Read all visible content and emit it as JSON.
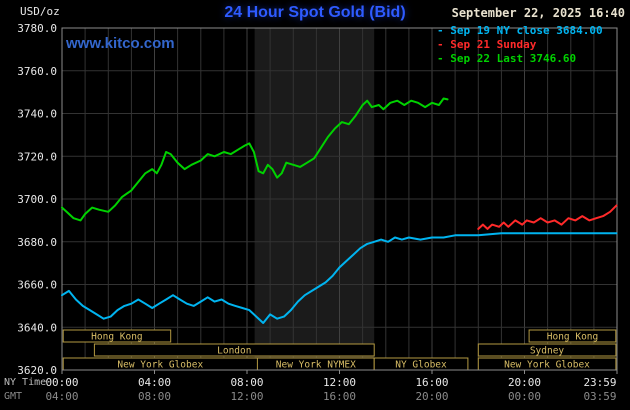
{
  "header": {
    "unit_label": "USD/oz",
    "title": "24 Hour Spot Gold (Bid)",
    "datetime": "September 22, 2025 16:40"
  },
  "watermark": {
    "text": "www.kitco.com",
    "color": "#3366cc"
  },
  "legend": {
    "items": [
      {
        "label": "- Sep 19 NY close 3684.00",
        "color": "#00b4f0"
      },
      {
        "label": "- Sep 21 Sunday",
        "color": "#ff2a2a"
      },
      {
        "label": "- Sep 22 Last 3746.60",
        "color": "#00d200"
      }
    ]
  },
  "axes": {
    "ny_time_label": "NY Time",
    "gmt_label": "GMT"
  },
  "colors": {
    "background": "#000000",
    "grid": "#333333",
    "grid_major": "#404040",
    "border": "#8c8c8c",
    "band": "#1b1b1b",
    "session_border": "#b49a42",
    "session_text": "#d8bd66",
    "tick_text": "#e8e8e8",
    "gmt_text": "#8a8a8a",
    "title": "#2e5bff"
  },
  "chart_data": {
    "type": "line",
    "title": "24 Hour Spot Gold (Bid)",
    "xlabel": "NY Time",
    "ylabel": "USD/oz",
    "ylim": [
      3620,
      3780
    ],
    "yticks": [
      3620,
      3640,
      3660,
      3680,
      3700,
      3720,
      3740,
      3760,
      3780
    ],
    "xticks": [
      {
        "h": 0,
        "ny": "00:00",
        "gmt": "04:00"
      },
      {
        "h": 4,
        "ny": "04:00",
        "gmt": "08:00"
      },
      {
        "h": 8,
        "ny": "08:00",
        "gmt": "12:00"
      },
      {
        "h": 12,
        "ny": "12:00",
        "gmt": "16:00"
      },
      {
        "h": 16,
        "ny": "16:00",
        "gmt": "20:00"
      },
      {
        "h": 20,
        "ny": "20:00",
        "gmt": "00:00"
      },
      {
        "h": 24,
        "ny": "23:59",
        "gmt": "03:59"
      }
    ],
    "highlight_band": {
      "from": 8.33,
      "to": 13.5
    },
    "series": [
      {
        "name": "Sep 19 NY close",
        "color": "#00b4f0",
        "last_value": 3684.0,
        "points": [
          [
            0,
            3655
          ],
          [
            0.3,
            3657
          ],
          [
            0.6,
            3653
          ],
          [
            0.9,
            3650
          ],
          [
            1.2,
            3648
          ],
          [
            1.5,
            3646
          ],
          [
            1.8,
            3644
          ],
          [
            2.1,
            3645
          ],
          [
            2.4,
            3648
          ],
          [
            2.7,
            3650
          ],
          [
            3,
            3651
          ],
          [
            3.3,
            3653
          ],
          [
            3.6,
            3651
          ],
          [
            3.9,
            3649
          ],
          [
            4.2,
            3651
          ],
          [
            4.5,
            3653
          ],
          [
            4.8,
            3655
          ],
          [
            5.1,
            3653
          ],
          [
            5.4,
            3651
          ],
          [
            5.7,
            3650
          ],
          [
            6,
            3652
          ],
          [
            6.3,
            3654
          ],
          [
            6.6,
            3652
          ],
          [
            6.9,
            3653
          ],
          [
            7.2,
            3651
          ],
          [
            7.5,
            3650
          ],
          [
            7.8,
            3649
          ],
          [
            8.1,
            3648
          ],
          [
            8.4,
            3645
          ],
          [
            8.7,
            3642
          ],
          [
            9,
            3646
          ],
          [
            9.3,
            3644
          ],
          [
            9.6,
            3645
          ],
          [
            9.9,
            3648
          ],
          [
            10.2,
            3652
          ],
          [
            10.5,
            3655
          ],
          [
            10.8,
            3657
          ],
          [
            11.1,
            3659
          ],
          [
            11.4,
            3661
          ],
          [
            11.7,
            3664
          ],
          [
            12,
            3668
          ],
          [
            12.3,
            3671
          ],
          [
            12.6,
            3674
          ],
          [
            12.9,
            3677
          ],
          [
            13.2,
            3679
          ],
          [
            13.5,
            3680
          ],
          [
            13.8,
            3681
          ],
          [
            14.1,
            3680
          ],
          [
            14.4,
            3682
          ],
          [
            14.7,
            3681
          ],
          [
            15,
            3682
          ],
          [
            15.5,
            3681
          ],
          [
            16,
            3682
          ],
          [
            16.5,
            3682
          ],
          [
            17,
            3683
          ],
          [
            18,
            3683
          ],
          [
            19,
            3684
          ],
          [
            20,
            3684
          ],
          [
            21,
            3684
          ],
          [
            22,
            3684
          ],
          [
            23,
            3684
          ],
          [
            23.98,
            3684
          ]
        ]
      },
      {
        "name": "Sep 21 Sunday",
        "color": "#ff2a2a",
        "last_value": 3697,
        "points": [
          [
            18,
            3686
          ],
          [
            18.2,
            3688
          ],
          [
            18.4,
            3686
          ],
          [
            18.6,
            3688
          ],
          [
            18.9,
            3687
          ],
          [
            19.1,
            3689
          ],
          [
            19.3,
            3687
          ],
          [
            19.6,
            3690
          ],
          [
            19.9,
            3688
          ],
          [
            20.1,
            3690
          ],
          [
            20.4,
            3689
          ],
          [
            20.7,
            3691
          ],
          [
            21,
            3689
          ],
          [
            21.3,
            3690
          ],
          [
            21.6,
            3688
          ],
          [
            21.9,
            3691
          ],
          [
            22.2,
            3690
          ],
          [
            22.5,
            3692
          ],
          [
            22.8,
            3690
          ],
          [
            23.1,
            3691
          ],
          [
            23.4,
            3692
          ],
          [
            23.7,
            3694
          ],
          [
            23.98,
            3697
          ]
        ]
      },
      {
        "name": "Sep 22 Last",
        "color": "#00d200",
        "last_value": 3746.6,
        "points": [
          [
            0,
            3696
          ],
          [
            0.2,
            3694
          ],
          [
            0.5,
            3691
          ],
          [
            0.8,
            3690
          ],
          [
            1,
            3693
          ],
          [
            1.3,
            3696
          ],
          [
            1.6,
            3695
          ],
          [
            2,
            3694
          ],
          [
            2.3,
            3697
          ],
          [
            2.6,
            3701
          ],
          [
            3,
            3704
          ],
          [
            3.3,
            3708
          ],
          [
            3.6,
            3712
          ],
          [
            3.9,
            3714
          ],
          [
            4.1,
            3712
          ],
          [
            4.3,
            3716
          ],
          [
            4.5,
            3722
          ],
          [
            4.7,
            3721
          ],
          [
            5,
            3717
          ],
          [
            5.3,
            3714
          ],
          [
            5.6,
            3716
          ],
          [
            6,
            3718
          ],
          [
            6.3,
            3721
          ],
          [
            6.6,
            3720
          ],
          [
            7,
            3722
          ],
          [
            7.3,
            3721
          ],
          [
            7.6,
            3723
          ],
          [
            7.9,
            3725
          ],
          [
            8.1,
            3726
          ],
          [
            8.3,
            3722
          ],
          [
            8.5,
            3713
          ],
          [
            8.7,
            3712
          ],
          [
            8.9,
            3716
          ],
          [
            9.1,
            3714
          ],
          [
            9.3,
            3710
          ],
          [
            9.5,
            3712
          ],
          [
            9.7,
            3717
          ],
          [
            10,
            3716
          ],
          [
            10.3,
            3715
          ],
          [
            10.6,
            3717
          ],
          [
            10.9,
            3719
          ],
          [
            11.2,
            3724
          ],
          [
            11.5,
            3729
          ],
          [
            11.8,
            3733
          ],
          [
            12.1,
            3736
          ],
          [
            12.4,
            3735
          ],
          [
            12.7,
            3739
          ],
          [
            13,
            3744
          ],
          [
            13.2,
            3746
          ],
          [
            13.4,
            3743
          ],
          [
            13.7,
            3744
          ],
          [
            13.9,
            3742
          ],
          [
            14.2,
            3745
          ],
          [
            14.5,
            3746
          ],
          [
            14.8,
            3744
          ],
          [
            15.1,
            3746
          ],
          [
            15.4,
            3745
          ],
          [
            15.7,
            3743
          ],
          [
            16,
            3745
          ],
          [
            16.3,
            3744
          ],
          [
            16.5,
            3747
          ],
          [
            16.67,
            3746.6
          ]
        ]
      }
    ],
    "sessions": [
      {
        "row": 0,
        "label": "Hong Kong",
        "from": 0.05,
        "to": 4.7
      },
      {
        "row": 0,
        "label": "Hong Kong",
        "from": 20.2,
        "to": 23.95
      },
      {
        "row": 1,
        "label": "London",
        "from": 1.4,
        "to": 13.5
      },
      {
        "row": 1,
        "label": "Sydney",
        "from": 18.0,
        "to": 23.95
      },
      {
        "row": 2,
        "label": "New York Globex",
        "from": 0.05,
        "to": 8.45
      },
      {
        "row": 2,
        "label": "New York NYMEX",
        "from": 8.45,
        "to": 13.5
      },
      {
        "row": 2,
        "label": "NY Globex",
        "from": 13.5,
        "to": 17.55
      },
      {
        "row": 2,
        "label": "New York Globex",
        "from": 18.0,
        "to": 23.95
      }
    ]
  }
}
